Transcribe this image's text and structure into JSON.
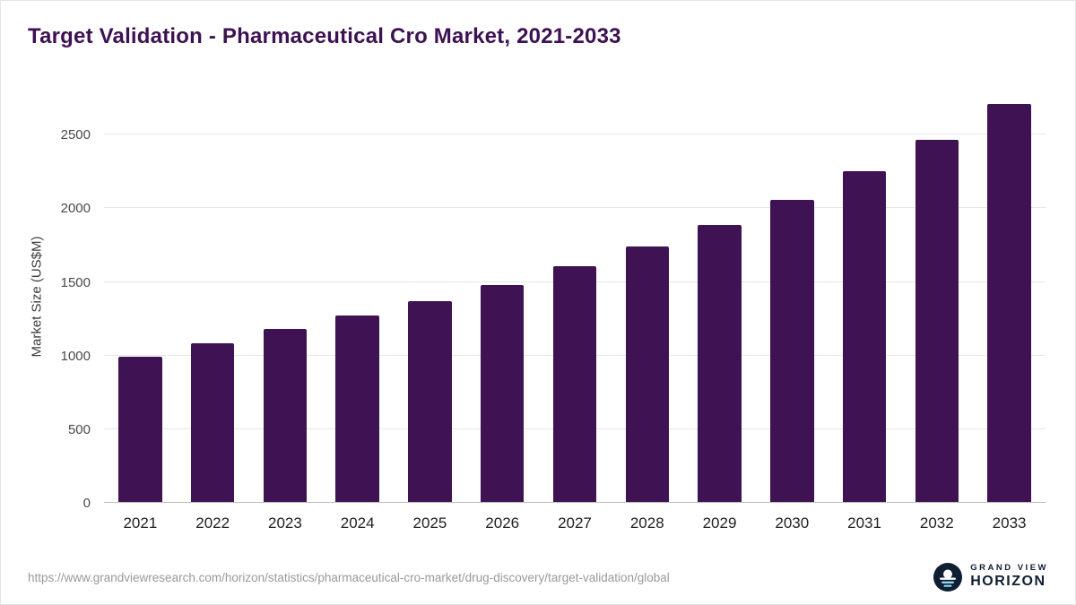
{
  "title": "Target Validation - Pharmaceutical Cro Market, 2021-2033",
  "chart_data": {
    "type": "bar",
    "categories": [
      "2021",
      "2022",
      "2023",
      "2024",
      "2025",
      "2026",
      "2027",
      "2028",
      "2029",
      "2030",
      "2031",
      "2032",
      "2033"
    ],
    "values": [
      990,
      1085,
      1180,
      1270,
      1372,
      1480,
      1605,
      1738,
      1888,
      2058,
      2255,
      2465,
      2710
    ],
    "title": "Target Validation - Pharmaceutical Cro Market, 2021-2033",
    "xlabel": "",
    "ylabel": "Market Size (US$M)",
    "ylim": [
      0,
      2800
    ],
    "yticks": [
      0,
      500,
      1000,
      1500,
      2000,
      2500
    ],
    "grid": true,
    "legend": "none",
    "bar_color": "#3e1253"
  },
  "colors": {
    "bar": "#3e1253",
    "title_text": "#3d1152",
    "gridline": "#e7e7e7",
    "axis_text": "#4a4a4a",
    "footer_text": "#999999",
    "logo_navy": "#0e1e33",
    "logo_lightblue": "#8fd8f2"
  },
  "footer": {
    "source_url": "https://www.grandviewresearch.com/horizon/statistics/pharmaceutical-cro-market/drug-discovery/target-validation/global",
    "brand_line1": "GRAND VIEW",
    "brand_line2": "HORIZON"
  }
}
